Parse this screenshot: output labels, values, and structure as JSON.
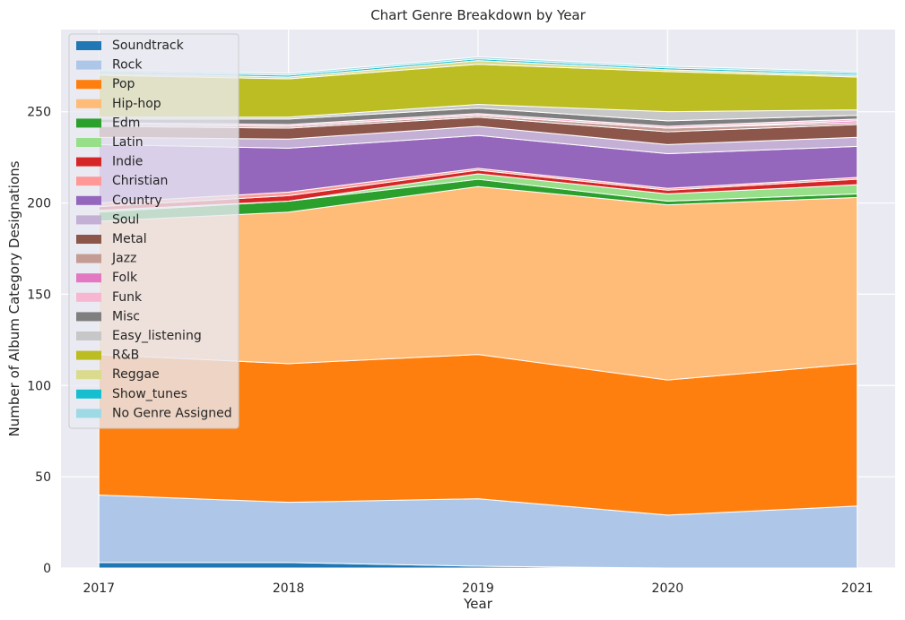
{
  "chart_data": {
    "type": "area",
    "stacked": true,
    "title": "Chart Genre Breakdown by Year",
    "xlabel": "Year",
    "ylabel": "Number of Album Category Designations",
    "x": [
      "2017",
      "2018",
      "2019",
      "2020",
      "2021"
    ],
    "xlim": [
      2016.8,
      2021.2
    ],
    "ylim": [
      0,
      295
    ],
    "yticks": [
      0,
      50,
      100,
      150,
      200,
      250
    ],
    "grid": true,
    "legend_position": "top-left",
    "series": [
      {
        "name": "Soundtrack",
        "color": "#1f77b4",
        "values": [
          3,
          3,
          1,
          0,
          0
        ]
      },
      {
        "name": "Rock",
        "color": "#aec7e8",
        "values": [
          37,
          33,
          37,
          29,
          34
        ]
      },
      {
        "name": "Pop",
        "color": "#ff7f0e",
        "values": [
          77,
          76,
          79,
          74,
          78
        ]
      },
      {
        "name": "Hip-hop",
        "color": "#ffbb78",
        "values": [
          73,
          83,
          92,
          96,
          91
        ]
      },
      {
        "name": "Edm",
        "color": "#2ca02c",
        "values": [
          5,
          6,
          4,
          2,
          2
        ]
      },
      {
        "name": "Latin",
        "color": "#98df8a",
        "values": [
          1,
          0,
          3,
          4,
          5
        ]
      },
      {
        "name": "Indie",
        "color": "#d62728",
        "values": [
          2,
          3,
          2,
          2,
          3
        ]
      },
      {
        "name": "Christian",
        "color": "#ff9896",
        "values": [
          2,
          2,
          1,
          1,
          1
        ]
      },
      {
        "name": "Country",
        "color": "#9467bd",
        "values": [
          32,
          24,
          18,
          19,
          17
        ]
      },
      {
        "name": "Soul",
        "color": "#c5b0d5",
        "values": [
          4,
          5,
          5,
          5,
          5
        ]
      },
      {
        "name": "Metal",
        "color": "#8c564b",
        "values": [
          6,
          6,
          5,
          7,
          7
        ]
      },
      {
        "name": "Jazz",
        "color": "#c49c94",
        "values": [
          1,
          1,
          1,
          2,
          1
        ]
      },
      {
        "name": "Folk",
        "color": "#e377c2",
        "values": [
          0,
          0,
          0,
          0,
          1
        ]
      },
      {
        "name": "Funk",
        "color": "#f7b6d2",
        "values": [
          1,
          1,
          1,
          1,
          1
        ]
      },
      {
        "name": "Misc",
        "color": "#7f7f7f",
        "values": [
          2,
          3,
          3,
          3,
          2
        ]
      },
      {
        "name": "Easy_listening",
        "color": "#c7c7c7",
        "values": [
          1,
          1,
          2,
          5,
          3
        ]
      },
      {
        "name": "R&B",
        "color": "#bcbd22",
        "values": [
          23,
          21,
          22,
          22,
          18
        ]
      },
      {
        "name": "Reggae",
        "color": "#dbdb8d",
        "values": [
          1,
          1,
          2,
          1,
          1
        ]
      },
      {
        "name": "Show_tunes",
        "color": "#17becf",
        "values": [
          1,
          1,
          1,
          1,
          1
        ]
      },
      {
        "name": "No Genre Assigned",
        "color": "#9edae5",
        "values": [
          1,
          1,
          1,
          1,
          1
        ]
      }
    ]
  }
}
